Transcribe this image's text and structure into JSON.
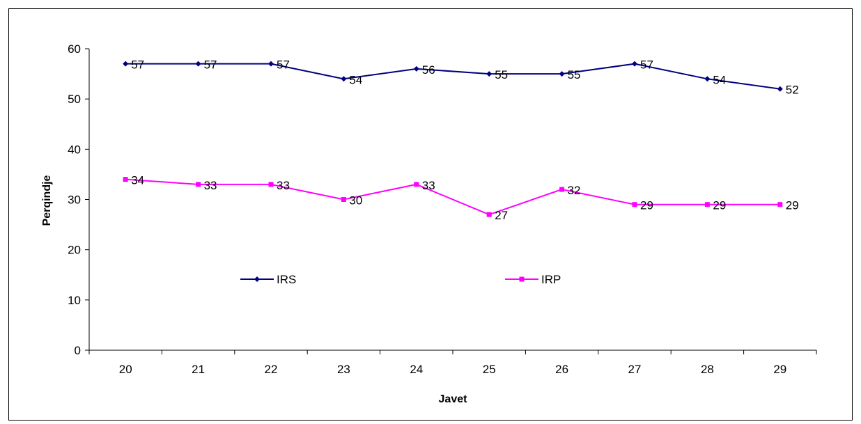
{
  "chart_data": {
    "type": "line",
    "title": "",
    "xlabel": "Javet",
    "ylabel": "Perqindje",
    "categories": [
      "20",
      "21",
      "22",
      "23",
      "24",
      "25",
      "26",
      "27",
      "28",
      "29"
    ],
    "ylim": [
      0,
      60
    ],
    "yticks": [
      "0",
      "10",
      "20",
      "30",
      "40",
      "50",
      "60"
    ],
    "grid": false,
    "legend_position": "inside-middle",
    "series": [
      {
        "name": "IRS",
        "color": "#000080",
        "marker": "diamond",
        "values": [
          57,
          57,
          57,
          54,
          56,
          55,
          55,
          57,
          54,
          52
        ]
      },
      {
        "name": "IRP",
        "color": "#FF00FF",
        "marker": "square",
        "values": [
          34,
          33,
          33,
          30,
          33,
          27,
          32,
          29,
          29,
          29
        ]
      }
    ]
  }
}
